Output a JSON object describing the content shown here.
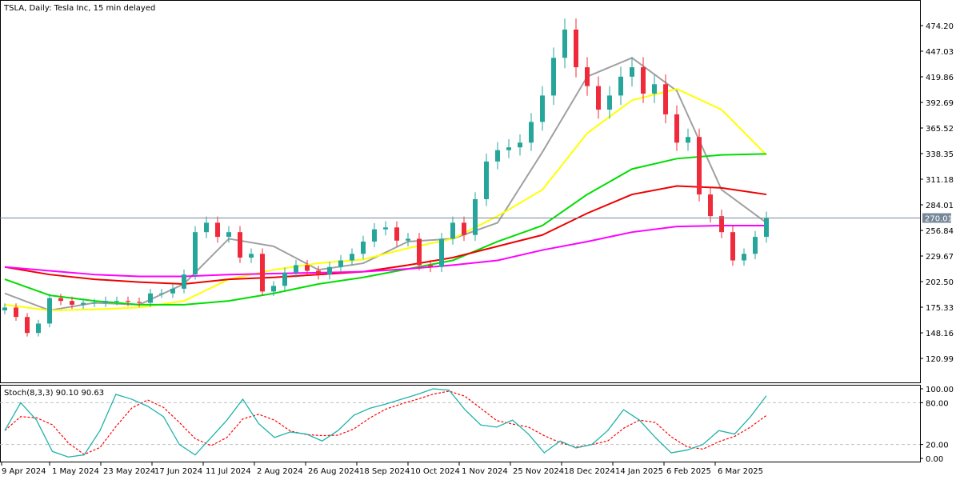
{
  "title": "TSLA, Daily:  Tesla Inc, 15 min delayed",
  "colors": {
    "up": "#26a69a",
    "down": "#ef2b3b",
    "gray_ma": "#a0a0a0",
    "yellow_ma": "#ffff00",
    "green_ma": "#00dd00",
    "red_ma": "#ee0000",
    "magenta_ma": "#ff00ff",
    "stoch_k": "#20b2aa",
    "stoch_d": "#ff0000",
    "price_line": "#778899"
  },
  "chart_data": {
    "type": "candlestick",
    "title": "TSLA, Daily:  Tesla Inc, 15 min delayed",
    "ylim": [
      100,
      490
    ],
    "y_ticks": [
      "474.20",
      "447.03",
      "419.86",
      "392.69",
      "365.52",
      "338.35",
      "311.18",
      "284.01",
      "256.84",
      "229.67",
      "202.50",
      "175.33",
      "148.16",
      "120.99"
    ],
    "y_tick_values": [
      474.2,
      447.03,
      419.86,
      392.69,
      365.52,
      338.35,
      311.18,
      284.01,
      256.84,
      229.67,
      202.5,
      175.33,
      148.16,
      120.99
    ],
    "current_price": "270.01",
    "x_labels": [
      "9 Apr 2024",
      "1 May 2024",
      "23 May 2024",
      "17 Jun 2024",
      "11 Jul 2024",
      "2 Aug 2024",
      "26 Aug 2024",
      "18 Sep 2024",
      "10 Oct 2024",
      "1 Nov 2024",
      "25 Nov 2024",
      "18 Dec 2024",
      "14 Jan 2025",
      "6 Feb 2025",
      "6 Mar 2025"
    ],
    "closes": [
      175,
      165,
      148,
      158,
      185,
      182,
      178,
      180,
      180,
      182,
      182,
      181,
      180,
      190,
      190,
      195,
      210,
      255,
      265,
      250,
      255,
      228,
      232,
      192,
      198,
      212,
      220,
      214,
      210,
      218,
      225,
      232,
      245,
      258,
      260,
      246,
      248,
      220,
      218,
      248,
      265,
      252,
      290,
      330,
      342,
      345,
      350,
      372,
      400,
      440,
      470,
      430,
      410,
      385,
      400,
      420,
      430,
      402,
      412,
      380,
      350,
      356,
      295,
      272,
      255,
      225,
      232,
      250,
      270.01
    ],
    "moving_averages": [
      {
        "name": "gray",
        "values": [
          190,
          172,
          180,
          178,
          200,
          248,
          240,
          215,
          222,
          245,
          248,
          265,
          340,
          420,
          440,
          405,
          300,
          265
        ]
      },
      {
        "name": "yellow",
        "values": [
          178,
          172,
          173,
          175,
          182,
          205,
          215,
          222,
          226,
          238,
          248,
          272,
          300,
          360,
          395,
          407,
          385,
          337
        ]
      },
      {
        "name": "green",
        "values": [
          205,
          188,
          182,
          178,
          178,
          182,
          190,
          200,
          207,
          216,
          225,
          245,
          262,
          295,
          322,
          333,
          337,
          338
        ]
      },
      {
        "name": "red",
        "values": [
          218,
          210,
          205,
          202,
          200,
          205,
          207,
          210,
          213,
          220,
          228,
          240,
          252,
          275,
          295,
          304,
          302,
          295
        ]
      },
      {
        "name": "magenta",
        "values": [
          218,
          214,
          210,
          208,
          208,
          210,
          211,
          212,
          213,
          216,
          220,
          225,
          236,
          245,
          255,
          261,
          262,
          262
        ]
      }
    ],
    "stochastic": {
      "label": "Stoch(8,3,3) 90.10 90.63",
      "ylim": [
        0,
        100
      ],
      "y_ticks": [
        "100.00",
        "80.00",
        "20.00",
        "0.00"
      ],
      "levels": [
        80,
        20
      ],
      "k": [
        40,
        80,
        55,
        10,
        2,
        5,
        40,
        92,
        85,
        75,
        60,
        20,
        5,
        30,
        55,
        85,
        50,
        30,
        38,
        35,
        25,
        40,
        62,
        72,
        78,
        85,
        92,
        100,
        98,
        70,
        48,
        45,
        55,
        35,
        8,
        25,
        15,
        20,
        40,
        70,
        55,
        30,
        8,
        12,
        20,
        40,
        35,
        60,
        90.1
      ]
    }
  }
}
